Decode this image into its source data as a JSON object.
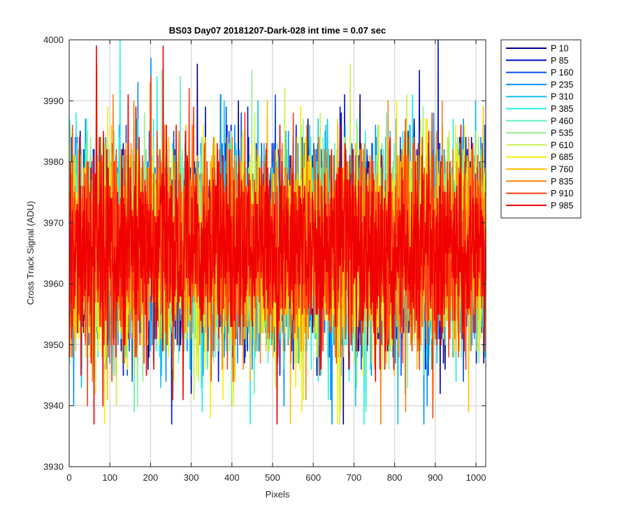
{
  "chart_data": {
    "type": "line",
    "title": "BS03 Day07 20181207-Dark-028 int time = 0.07 sec",
    "xlabel": "Pixels",
    "ylabel": "Cross Track Signal (ADU)",
    "xlim": [
      0,
      1024
    ],
    "ylim": [
      3930,
      4000
    ],
    "x_ticks": [
      0,
      100,
      200,
      300,
      400,
      500,
      600,
      700,
      800,
      900,
      1000
    ],
    "y_ticks": [
      3930,
      3940,
      3950,
      3960,
      3970,
      3980,
      3990,
      4000
    ],
    "grid": true,
    "legend_position": "outside-right",
    "noise": {
      "mean": 3966,
      "spread": 8,
      "min": 3937,
      "max": 4000
    },
    "series": [
      {
        "name": "P 10",
        "color": "#00008f"
      },
      {
        "name": "P 85",
        "color": "#0010d0"
      },
      {
        "name": "P 160",
        "color": "#0050ef"
      },
      {
        "name": "P 235",
        "color": "#0090ff"
      },
      {
        "name": "P 310",
        "color": "#10c0f0"
      },
      {
        "name": "P 385",
        "color": "#20f0e8"
      },
      {
        "name": "P 460",
        "color": "#60f0c0"
      },
      {
        "name": "P 535",
        "color": "#90f090"
      },
      {
        "name": "P 610",
        "color": "#c8f048"
      },
      {
        "name": "P 685",
        "color": "#f8f000"
      },
      {
        "name": "P 760",
        "color": "#ffc000"
      },
      {
        "name": "P 835",
        "color": "#ff8010"
      },
      {
        "name": "P 910",
        "color": "#ff4010"
      },
      {
        "name": "P 985",
        "color": "#f00000"
      }
    ]
  }
}
